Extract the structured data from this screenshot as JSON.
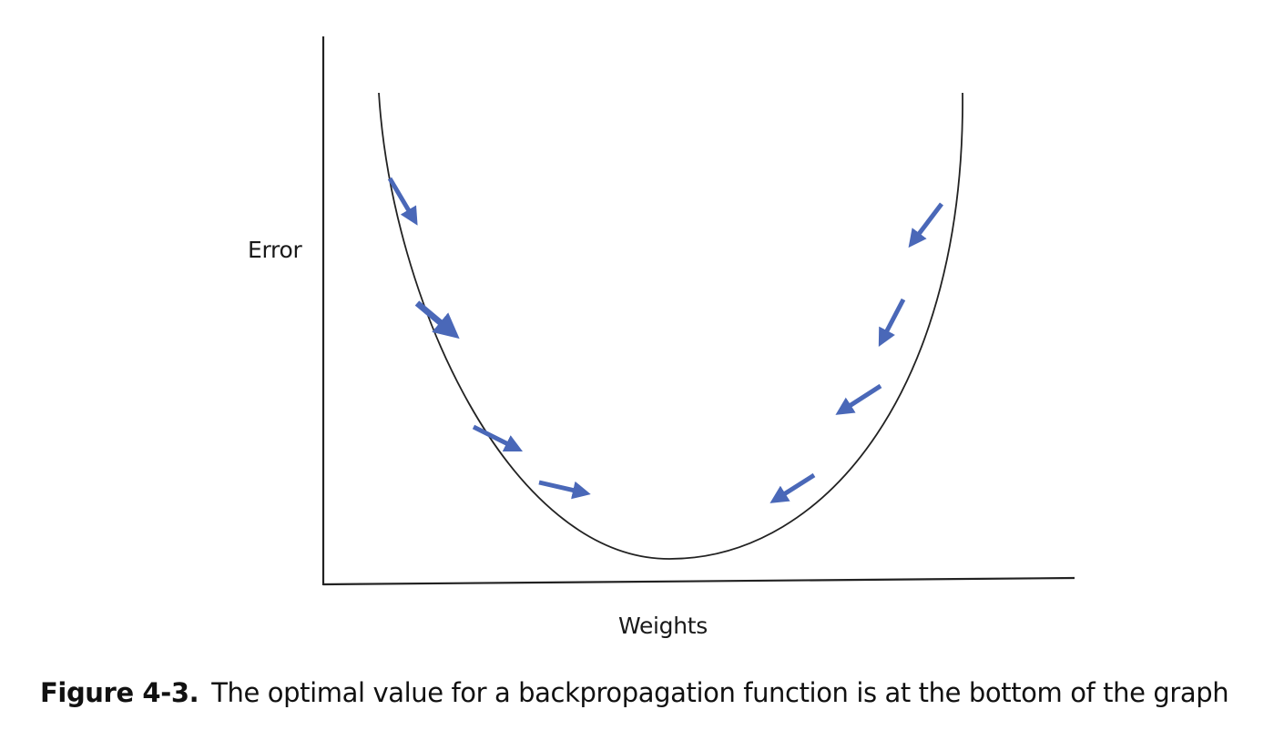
{
  "axes": {
    "y_label": "Error",
    "x_label": "Weights"
  },
  "caption": {
    "figure_number": "Figure 4-3.",
    "text": "The optimal value for a backpropagation function is at the bottom of the graph"
  },
  "colors": {
    "curve": "#222222",
    "axis": "#222222",
    "arrow": "#4a68b8"
  }
}
